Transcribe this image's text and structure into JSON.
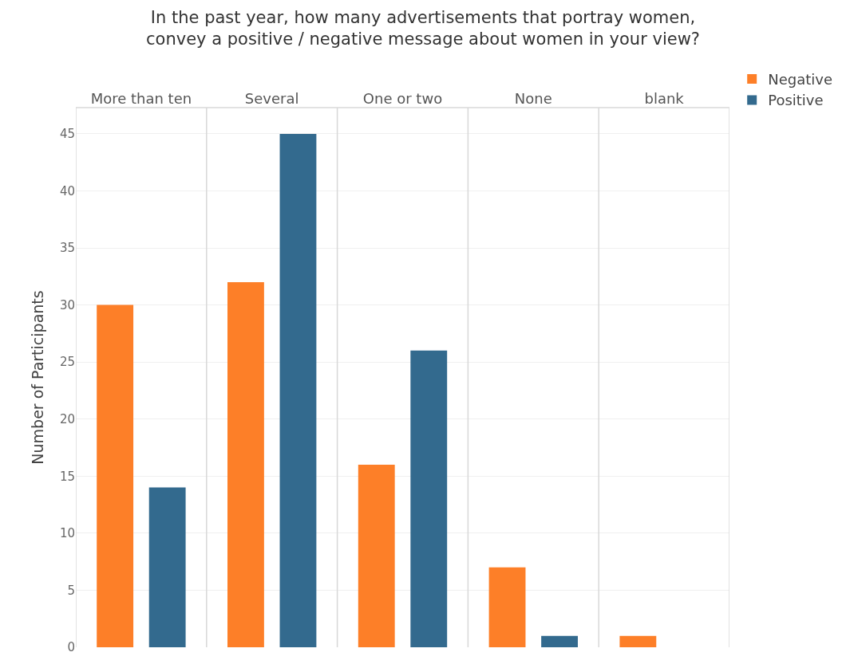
{
  "chart_data": {
    "type": "bar",
    "title": "In the past year, how many advertisements that portray women,\nconvey a positive / negative message about women in your view?",
    "ylabel": "Number of Participants",
    "categories": [
      "More than ten",
      "Several",
      "One or two",
      "None",
      "blank"
    ],
    "series": [
      {
        "name": "Negative",
        "color": "#fd7f28",
        "values": [
          30,
          32,
          16,
          7,
          1
        ]
      },
      {
        "name": "Positive",
        "color": "#336a8e",
        "values": [
          14,
          45,
          26,
          1,
          0
        ]
      }
    ],
    "ylim": [
      0,
      47.3
    ],
    "yticks": [
      0,
      5,
      10,
      15,
      20,
      25,
      30,
      35,
      40,
      45
    ],
    "grid": true,
    "legend": "top right"
  }
}
